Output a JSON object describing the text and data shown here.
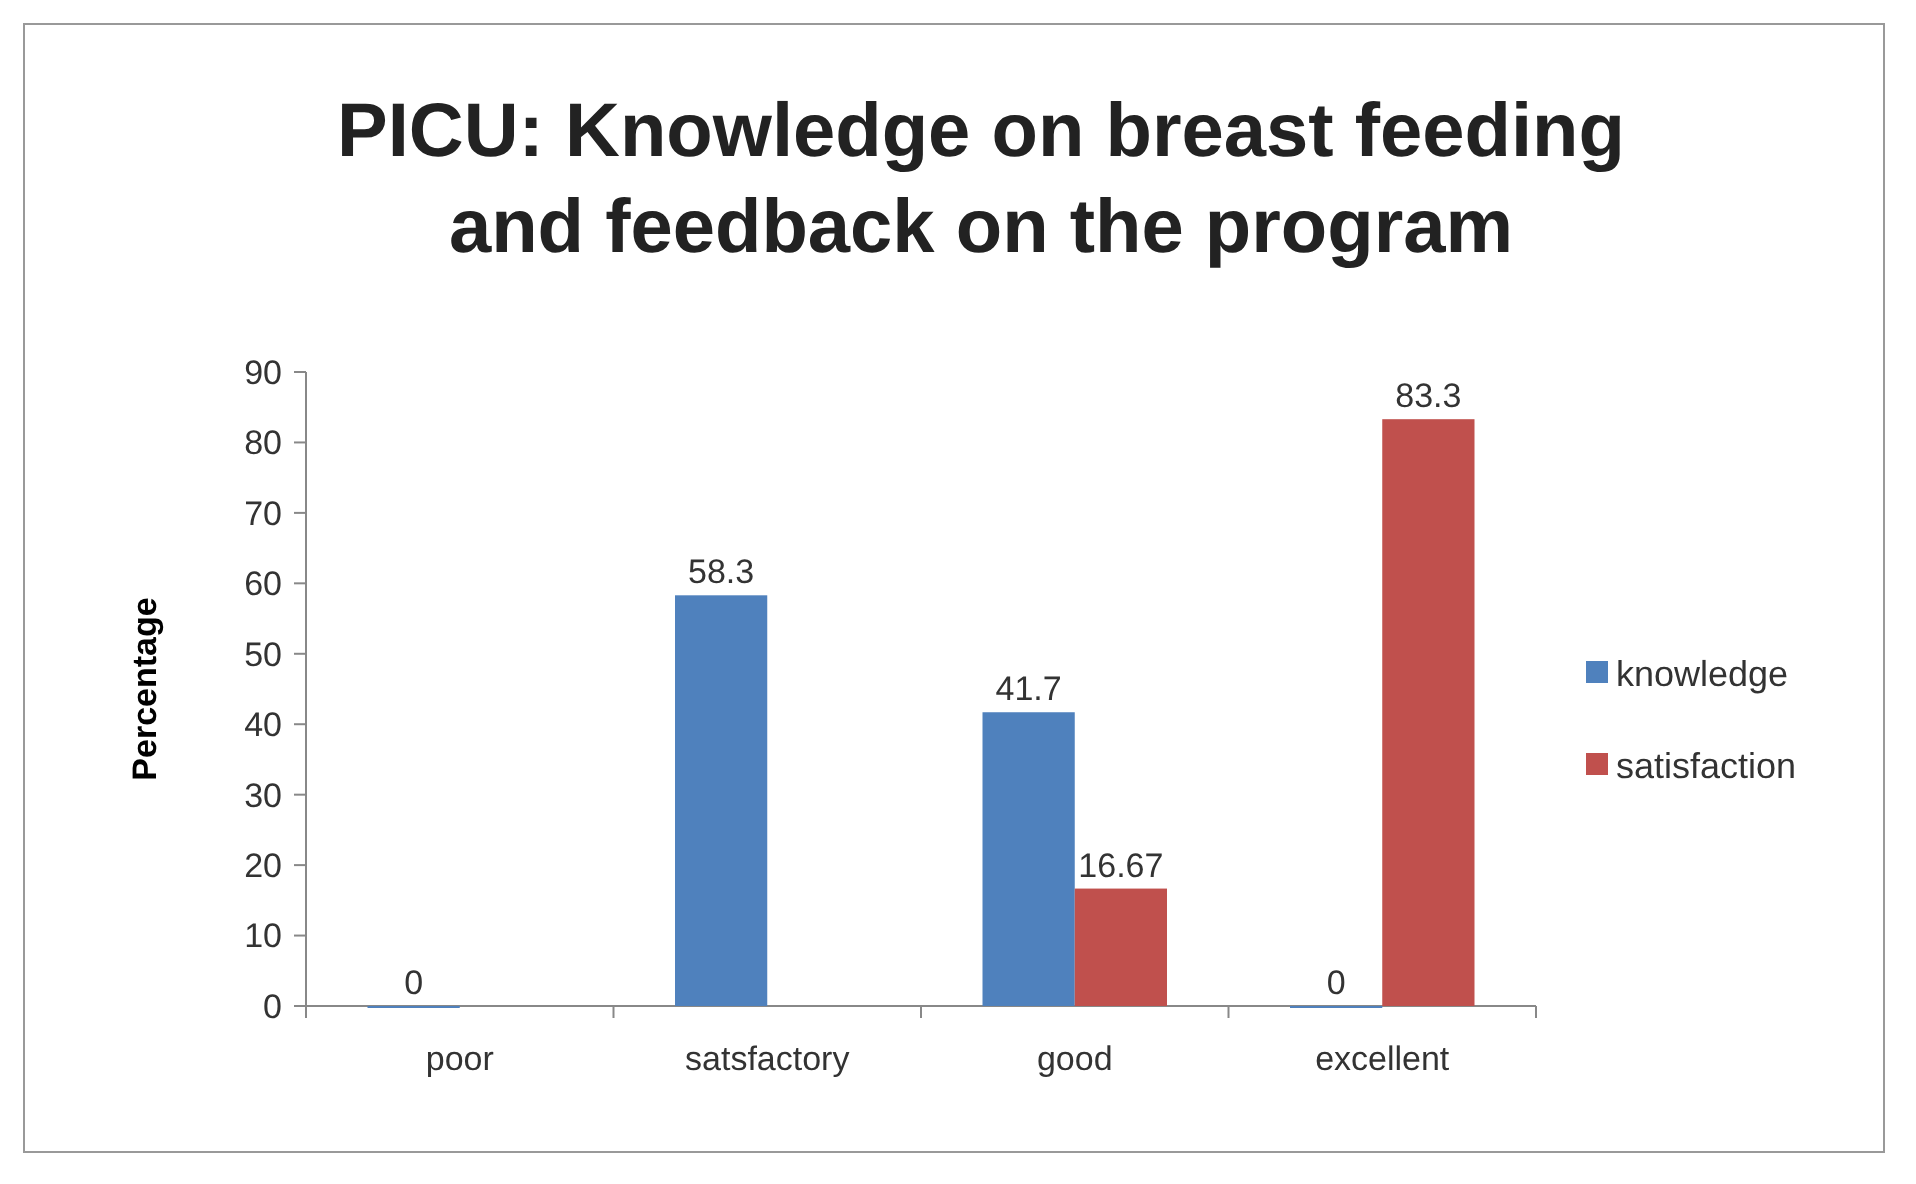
{
  "chart_data": {
    "type": "bar",
    "title": "PICU: Knowledge on breast feeding and feedback on the program",
    "ylabel": "Percentage",
    "categories": [
      "poor",
      "satsfactory",
      "good",
      "excellent"
    ],
    "series": [
      {
        "name": "knowledge",
        "color": "#4f81bd",
        "values": [
          0,
          58.3,
          41.7,
          0
        ]
      },
      {
        "name": "satisfaction",
        "color": "#c0504d",
        "values": [
          null,
          null,
          16.67,
          83.3
        ]
      }
    ],
    "ylim": [
      0,
      90
    ],
    "yticks": [
      0,
      10,
      20,
      30,
      40,
      50,
      60,
      70,
      80,
      90
    ],
    "data_labels": true,
    "legend": "right"
  }
}
